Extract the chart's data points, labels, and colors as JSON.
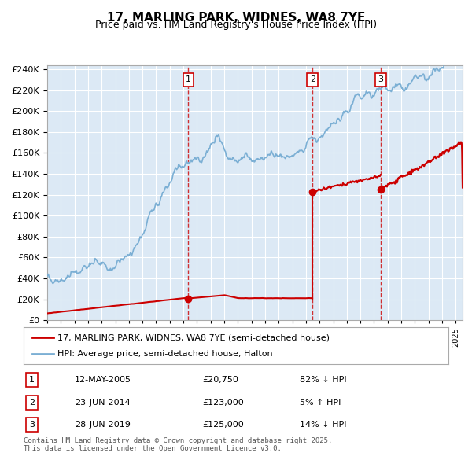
{
  "title": "17, MARLING PARK, WIDNES, WA8 7YE",
  "subtitle": "Price paid vs. HM Land Registry's House Price Index (HPI)",
  "bg_color": "#dce9f5",
  "plot_bg_color": "#dce9f5",
  "hpi_color": "#7bafd4",
  "price_color": "#cc0000",
  "purchase_marker_color": "#cc0000",
  "vline_color": "#cc0000",
  "ylim": [
    0,
    244000
  ],
  "xlim_start": 1995.0,
  "xlim_end": 2025.5,
  "ytick_interval": 20000,
  "purchases": [
    {
      "label": "1",
      "date": 2005.36,
      "price": 20750,
      "x_line": 2005.36
    },
    {
      "label": "2",
      "date": 2014.48,
      "price": 123000,
      "x_line": 2014.48
    },
    {
      "label": "3",
      "date": 2019.48,
      "price": 125000,
      "x_line": 2019.48
    }
  ],
  "legend_line1": "17, MARLING PARK, WIDNES, WA8 7YE (semi-detached house)",
  "legend_line2": "HPI: Average price, semi-detached house, Halton",
  "table": [
    {
      "num": "1",
      "date": "12-MAY-2005",
      "price": "£20,750",
      "hpi": "82% ↓ HPI"
    },
    {
      "num": "2",
      "date": "23-JUN-2014",
      "price": "£123,000",
      "hpi": "5% ↑ HPI"
    },
    {
      "num": "3",
      "date": "28-JUN-2019",
      "price": "£125,000",
      "hpi": "14% ↓ HPI"
    }
  ],
  "footer": "Contains HM Land Registry data © Crown copyright and database right 2025.\nThis data is licensed under the Open Government Licence v3.0."
}
